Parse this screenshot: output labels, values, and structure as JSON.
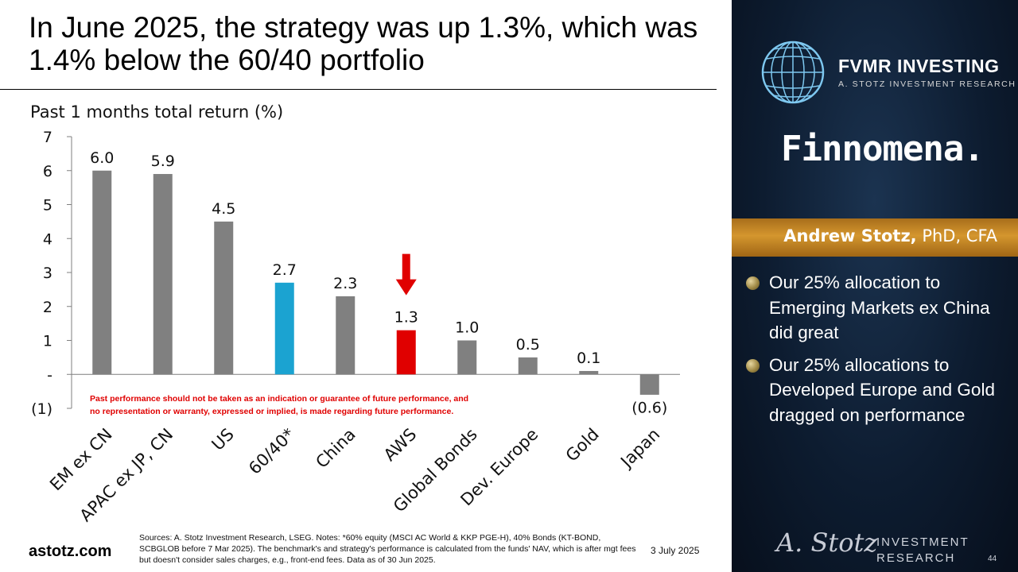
{
  "slide": {
    "title": "In June 2025, the strategy was up 1.3%, which was 1.4% below the 60/40 portfolio",
    "site": "astotz.com",
    "sources": "Sources: A. Stotz Investment Research, LSEG. Notes: *60% equity (MSCI AC World & KKP PGE-H), 40% Bonds (KT-BOND, SCBGLOB before 7 Mar 2025). The benchmark's and strategy's performance is calculated from the funds' NAV, which is after mgt fees but doesn't consider sales charges, e.g., front-end fees. Data as of 30 Jun 2025.",
    "date": "3 July 2025",
    "page_number": "44"
  },
  "chart_data": {
    "type": "bar",
    "title": "Past 1 months total return (%)",
    "categories": [
      "EM ex CN",
      "APAC ex JP, CN",
      "US",
      "60/40*",
      "China",
      "AWS",
      "Global Bonds",
      "Dev. Europe",
      "Gold",
      "Japan"
    ],
    "values": [
      6.0,
      5.9,
      4.5,
      2.7,
      2.3,
      1.3,
      1.0,
      0.5,
      0.1,
      -0.6
    ],
    "value_labels": [
      "6.0",
      "5.9",
      "4.5",
      "2.7",
      "2.3",
      "1.3",
      "1.0",
      "0.5",
      "0.1",
      "(0.6)"
    ],
    "bar_colors": [
      "#808080",
      "#808080",
      "#808080",
      "#1ba3d1",
      "#808080",
      "#e00000",
      "#808080",
      "#808080",
      "#808080",
      "#808080"
    ],
    "highlight_arrow_category": "AWS",
    "ylim": [
      -1,
      7
    ],
    "yticks": [
      7,
      6,
      5,
      4,
      3,
      2,
      1,
      0,
      -1
    ],
    "ytick_labels": [
      "7",
      "6",
      "5",
      "4",
      "3",
      "2",
      "1",
      "-",
      "(1)"
    ],
    "disclaimer_lines": [
      "Past performance should not be taken as an indication or guarantee of future performance, and",
      "no representation or warranty, expressed or implied, is made regarding future performance."
    ],
    "disclaimer_color": "#e00000",
    "arrow_color": "#e00000"
  },
  "panel": {
    "brand": "FVMR INVESTING",
    "brand_tagline": "A. STOTZ INVESTMENT RESEARCH",
    "partner": "Finnomena.",
    "presenter_name": "Andrew Stotz,",
    "presenter_credentials": " PhD, CFA",
    "bullets": [
      "Our 25% allocation to Emerging Markets ex China did great",
      "Our 25% allocations to Developed Europe and Gold dragged on performance"
    ],
    "signature": "A. Stotz",
    "footer_line1": "INVESTMENT",
    "footer_line2": "RESEARCH"
  }
}
